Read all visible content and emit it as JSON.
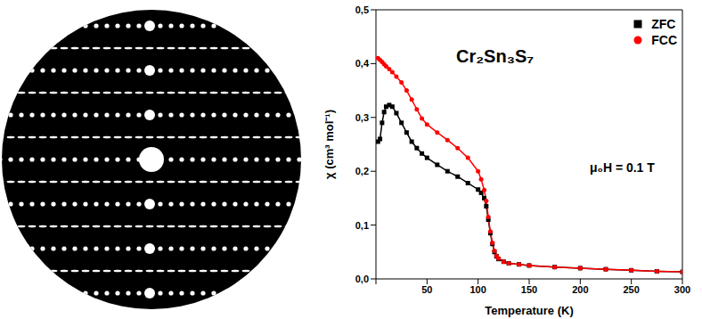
{
  "chart_data": {
    "type": "line",
    "title": "Cr₂Sn₃S₇",
    "annotations": [
      "μ₀H = 0.1 T"
    ],
    "x_label": "Temperature (K)",
    "y_label": "χ (cm³ mol⁻¹)",
    "x": [
      2,
      4,
      6,
      8,
      10,
      13,
      16,
      20,
      25,
      30,
      35,
      40,
      45,
      50,
      60,
      70,
      80,
      90,
      100,
      103,
      106,
      108,
      110,
      112,
      114,
      116,
      118,
      120,
      125,
      130,
      140,
      150,
      175,
      200,
      225,
      250,
      275,
      300
    ],
    "series": [
      {
        "name": "ZFC",
        "color": "#000000",
        "marker": "square",
        "line_style": "solid",
        "values": [
          0.255,
          0.26,
          0.29,
          0.31,
          0.32,
          0.323,
          0.32,
          0.308,
          0.29,
          0.272,
          0.255,
          0.243,
          0.233,
          0.225,
          0.212,
          0.2,
          0.19,
          0.178,
          0.166,
          0.16,
          0.15,
          0.135,
          0.11,
          0.085,
          0.065,
          0.05,
          0.042,
          0.037,
          0.032,
          0.029,
          0.027,
          0.025,
          0.022,
          0.02,
          0.018,
          0.016,
          0.014,
          0.013
        ]
      },
      {
        "name": "FCC",
        "color": "#ff0000",
        "marker": "circle",
        "line_style": "solid",
        "values": [
          0.41,
          0.407,
          0.403,
          0.399,
          0.395,
          0.39,
          0.384,
          0.376,
          0.365,
          0.35,
          0.333,
          0.315,
          0.298,
          0.287,
          0.272,
          0.258,
          0.243,
          0.225,
          0.2,
          0.185,
          0.165,
          0.145,
          0.115,
          0.088,
          0.067,
          0.052,
          0.043,
          0.038,
          0.032,
          0.029,
          0.027,
          0.025,
          0.022,
          0.02,
          0.018,
          0.016,
          0.014,
          0.013
        ]
      }
    ],
    "xlim": [
      0,
      300
    ],
    "xticks": [
      0,
      50,
      100,
      150,
      200,
      250,
      300
    ],
    "ylim": [
      0,
      0.5
    ],
    "yticks": [
      {
        "value": 0,
        "label": "0,0"
      },
      {
        "value": 0.1,
        "label": "0,1"
      },
      {
        "value": 0.2,
        "label": "0,2"
      },
      {
        "value": 0.3,
        "label": "0,3"
      },
      {
        "value": 0.4,
        "label": "0,4"
      },
      {
        "value": 0.5,
        "label": "0,5"
      }
    ],
    "legend": "upper right",
    "grid": false
  }
}
